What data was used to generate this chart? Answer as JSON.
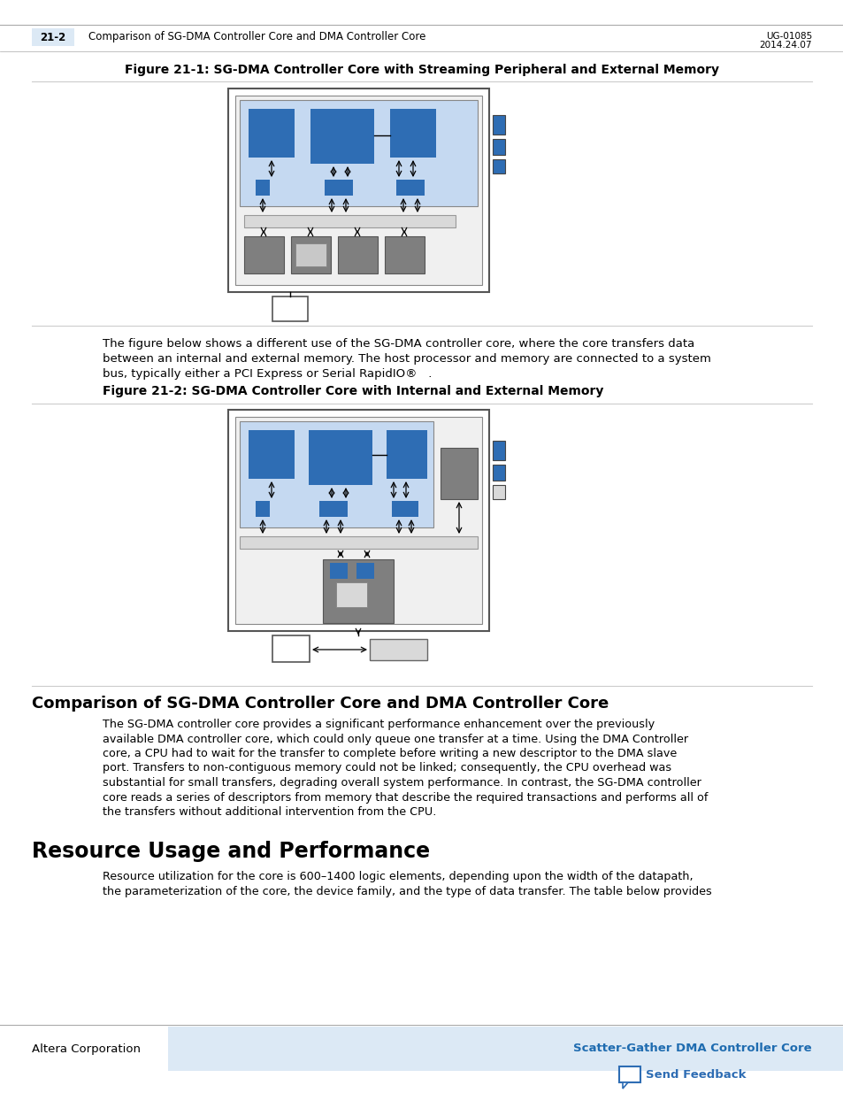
{
  "page_bg": "#ffffff",
  "header_tab_color": "#dce9f5",
  "header_tab_text": "21-2",
  "header_main_text": "Comparison of SG-DMA Controller Core and DMA Controller Core",
  "header_right_line1": "UG-01085",
  "header_right_line2": "2014.24.07",
  "fig1_title": "Figure 21-1: SG-DMA Controller Core with Streaming Peripheral and External Memory",
  "fig2_title": "Figure 21-2: SG-DMA Controller Core with Internal and External Memory",
  "section_title": "Comparison of SG-DMA Controller Core and DMA Controller Core",
  "section_body_lines": [
    "The SG-DMA controller core provides a significant performance enhancement over the previously",
    "available DMA controller core, which could only queue one transfer at a time. Using the DMA Controller",
    "core, a CPU had to wait for the transfer to complete before writing a new descriptor to the DMA slave",
    "port. Transfers to non-contiguous memory could not be linked; consequently, the CPU overhead was",
    "substantial for small transfers, degrading overall system performance. In contrast, the SG-DMA controller",
    "core reads a series of descriptors from memory that describe the required transactions and performs all of",
    "the transfers without additional intervention from the CPU."
  ],
  "resource_title": "Resource Usage and Performance",
  "resource_body_lines": [
    "Resource utilization for the core is 600–1400 logic elements, depending upon the width of the datapath,",
    "the parameterization of the core, the device family, and the type of data transfer. The table below provides"
  ],
  "para1_lines": [
    "The figure below shows a different use of the SG-DMA controller core, where the core transfers data",
    "between an internal and external memory. The host processor and memory are connected to a system",
    "bus, typically either a PCI Express or Serial RapidIO®   ."
  ],
  "footer_left": "Altera Corporation",
  "footer_right": "Scatter-Gather DMA Controller Core",
  "footer_feedback": "Send Feedback",
  "blue_medium": "#2e6db4",
  "blue_light": "#c5d9f1",
  "blue_light2": "#dce9f5",
  "gray_dark": "#7f7f7f",
  "gray_medium": "#a6a6a6",
  "gray_light": "#d9d9d9",
  "text_color": "#000000",
  "link_color": "#1f6cb0",
  "sep_color": "#cccccc"
}
